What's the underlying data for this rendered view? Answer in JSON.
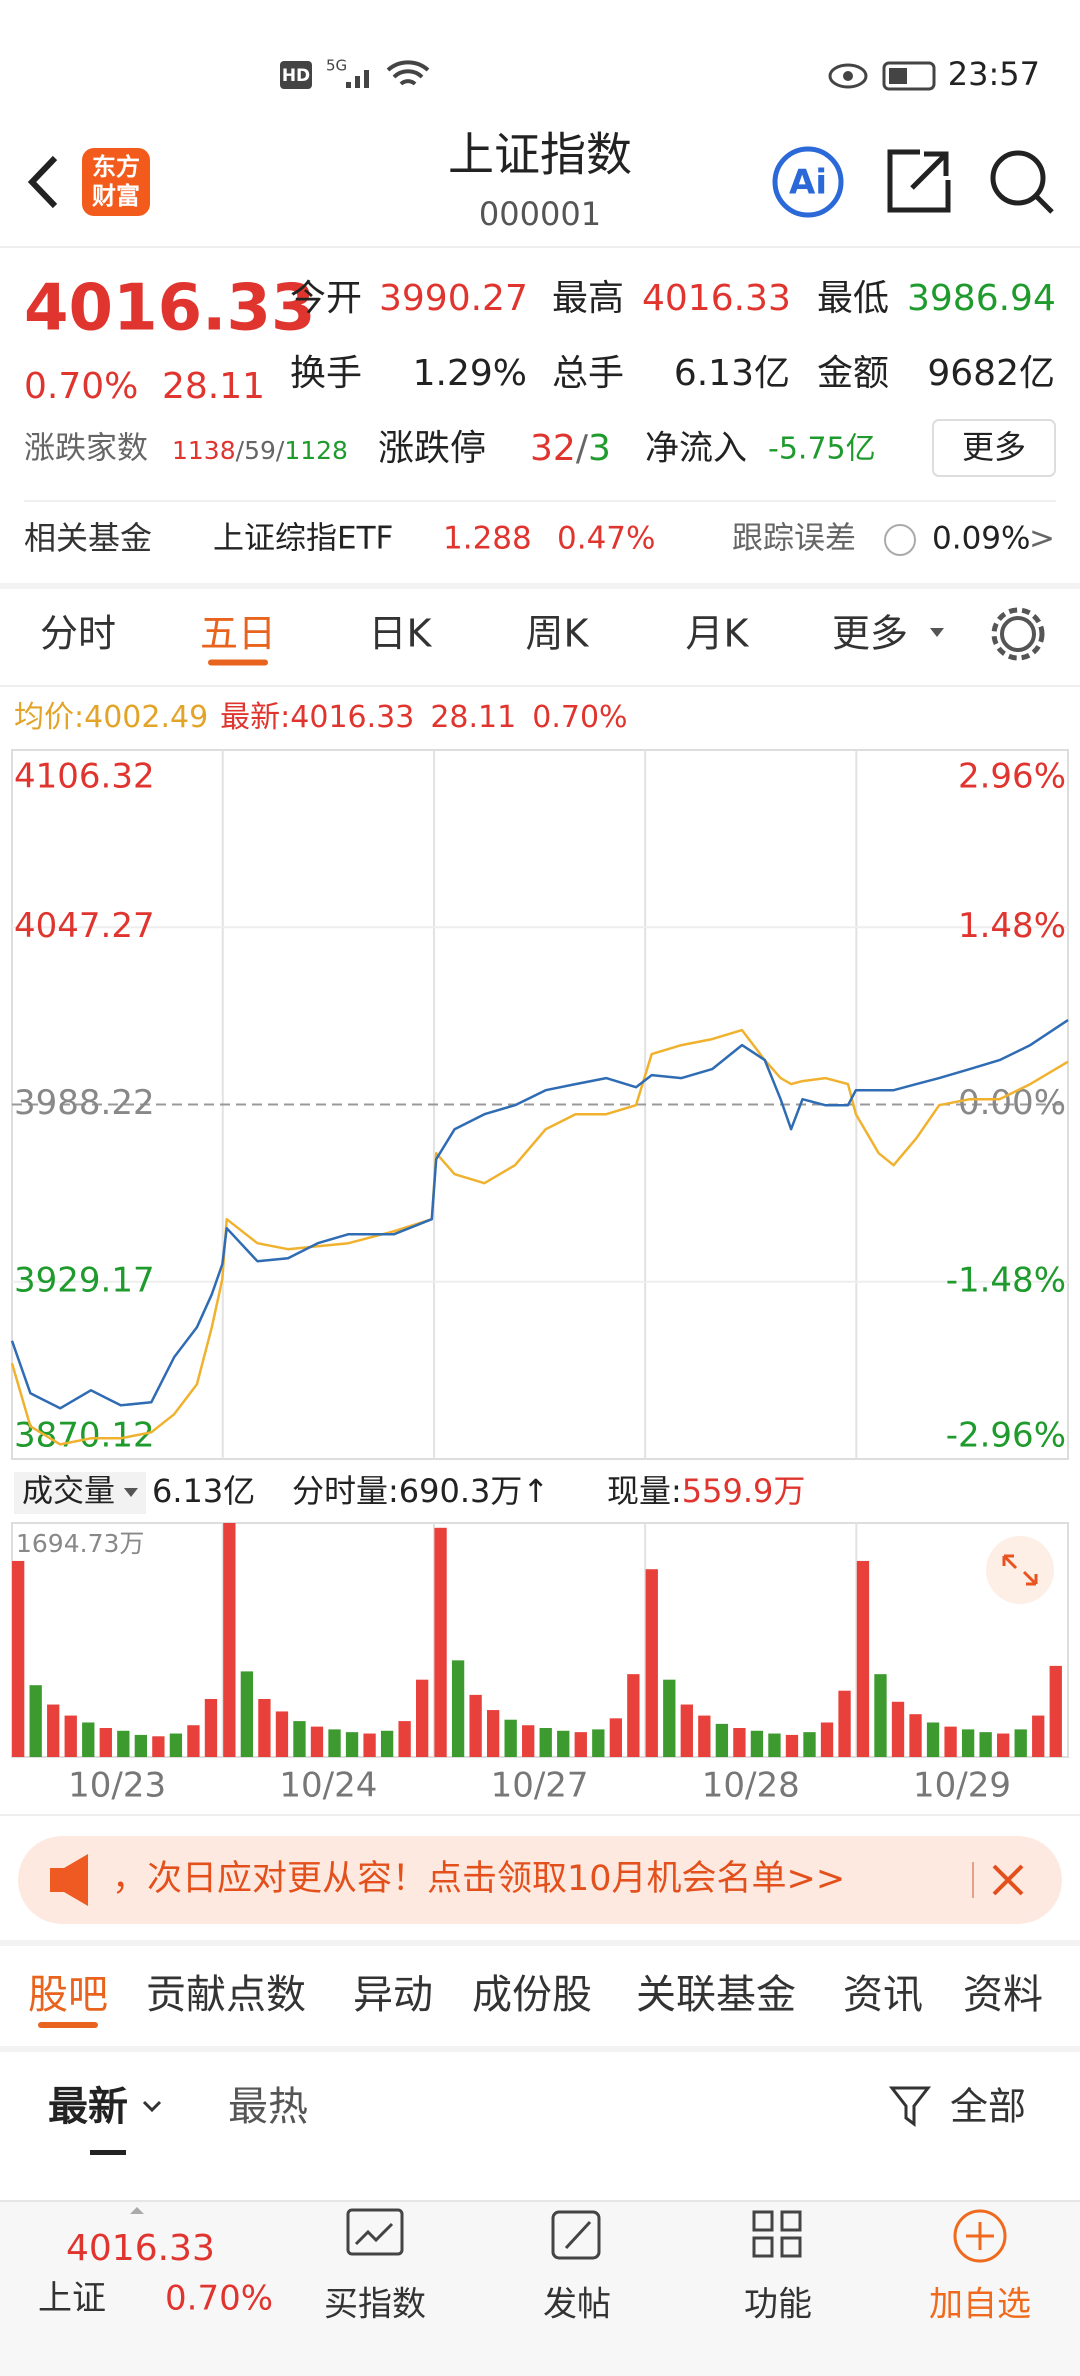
{
  "status_bar": {
    "badge": "HD",
    "network": "5G",
    "time": "23:57"
  },
  "header": {
    "logo": [
      "东方",
      "财富"
    ],
    "title": "上证指数",
    "code": "000001",
    "ai": "Ai"
  },
  "quote": {
    "price": "4016.33",
    "change_pct": "0.70%",
    "change": "28.11",
    "fields": [
      {
        "label": "今开",
        "value": "3990.27"
      },
      {
        "label": "最高",
        "value": "4016.33"
      },
      {
        "label": "最低",
        "value": "3986.94"
      },
      {
        "label": "换手",
        "value": "1.29%"
      },
      {
        "label": "总手",
        "value": "6.13亿"
      },
      {
        "label": "金额",
        "value": "9682亿"
      }
    ],
    "breadth": {
      "label": "涨跌家数",
      "up": "1138",
      "sep": "/",
      "flat": "59",
      "down": "1128"
    },
    "limit": {
      "label": "涨跌停",
      "up": "32",
      "sep": "/",
      "down": "3"
    },
    "net_inflow": {
      "label": "净流入",
      "value": "-5.75亿"
    },
    "more": "更多"
  },
  "fund": {
    "label": "相关基金",
    "name": "上证综指ETF",
    "price": "1.288",
    "pct": "0.47%",
    "tracking_label": "跟踪误差",
    "tracking_value": "0.09%",
    "arrow": ">"
  },
  "tabs": {
    "items": [
      "分时",
      "五日",
      "日K",
      "周K",
      "月K",
      "更多"
    ],
    "active": 1
  },
  "info_bar": {
    "avg_label": "均价:",
    "avg": "4002.49",
    "latest_label": "最新:",
    "latest": "4016.33",
    "change": "28.11",
    "pct": "0.70%"
  },
  "chart_data": [
    {
      "type": "line",
      "x": [
        0,
        21,
        55,
        90,
        124,
        159,
        185,
        211,
        228,
        240,
        245,
        280,
        315,
        349,
        384,
        436,
        479,
        484,
        505,
        539,
        574,
        609,
        643,
        678,
        712,
        730,
        764,
        799,
        833,
        859,
        877,
        889,
        902,
        928,
        954,
        963,
        989,
        1006,
        1032,
        1058,
        1093,
        1127,
        1162,
        1205
      ],
      "xlim": [
        0,
        1205
      ],
      "ylim": [
        3870.12,
        4106.32
      ],
      "yticks": [
        4106.32,
        4047.27,
        3988.22,
        3929.17,
        3870.12
      ],
      "y2lim": [
        -2.96,
        2.96
      ],
      "y2ticks": [
        {
          "value": 2.96,
          "label": "2.96%"
        },
        {
          "value": 1.48,
          "label": "1.48%"
        },
        {
          "value": 0,
          "label": "0.00%"
        },
        {
          "value": -1.48,
          "label": "-1.48%"
        },
        {
          "value": -2.96,
          "label": "-2.96%"
        }
      ],
      "grid": true,
      "series": [
        {
          "color": "#f0b22e",
          "values": [
            3902,
            3881,
            3875,
            3877,
            3877,
            3879,
            3885,
            3895,
            3914,
            3930,
            3950,
            3942,
            3940,
            3941,
            3942,
            3946,
            3950,
            3972,
            3965,
            3962,
            3968,
            3980,
            3985,
            3985,
            3988,
            4005,
            4008,
            4010,
            4013,
            4003,
            3997,
            3995,
            3996,
            3997,
            3995,
            3985,
            3972,
            3968,
            3977,
            3988,
            3990,
            3990,
            3995,
            4002.49
          ]
        },
        {
          "color": "#2f6cb3",
          "values": [
            3909.5,
            3892,
            3887,
            3893,
            3888,
            3889,
            3904,
            3914,
            3925,
            3935,
            3947,
            3936,
            3937,
            3942,
            3945,
            3945,
            3950,
            3970,
            3980,
            3985,
            3988,
            3993,
            3995,
            3997,
            3994,
            3998,
            3997,
            4000,
            4008,
            4003,
            3990,
            3980,
            3990,
            3988,
            3988,
            3993,
            3993,
            3993,
            3995,
            3997,
            4000,
            4003,
            4008,
            4016.33
          ]
        }
      ]
    },
    {
      "type": "bar",
      "x": [
        0,
        20,
        40,
        60,
        80,
        100,
        120,
        140,
        160,
        180,
        200,
        220,
        241,
        261,
        281,
        301,
        321,
        341,
        361,
        381,
        401,
        421,
        441,
        461,
        482,
        502,
        522,
        542,
        562,
        582,
        602,
        622,
        642,
        662,
        682,
        702,
        723,
        743,
        763,
        783,
        803,
        823,
        843,
        863,
        883,
        903,
        923,
        943,
        964,
        984,
        1004,
        1024,
        1044,
        1064,
        1084,
        1104,
        1124,
        1144,
        1164,
        1184
      ],
      "values": [
        1420,
        520,
        380,
        300,
        250,
        210,
        190,
        160,
        150,
        170,
        230,
        420,
        1694.73,
        620,
        420,
        330,
        260,
        220,
        200,
        180,
        170,
        190,
        260,
        560,
        1660,
        700,
        450,
        340,
        270,
        230,
        210,
        190,
        180,
        200,
        280,
        600,
        1360,
        560,
        380,
        300,
        240,
        210,
        190,
        170,
        160,
        180,
        250,
        480,
        1420,
        600,
        400,
        310,
        250,
        220,
        200,
        180,
        170,
        200,
        300,
        660
      ],
      "colors": [
        "#e8413c",
        "#3c9a2e",
        "#e8413c",
        "#e8413c",
        "#3c9a2e",
        "#e8413c",
        "#3c9a2e",
        "#3c9a2e",
        "#e8413c",
        "#3c9a2e",
        "#e8413c",
        "#e8413c",
        "#e8413c",
        "#3c9a2e",
        "#e8413c",
        "#e8413c",
        "#3c9a2e",
        "#e8413c",
        "#3c9a2e",
        "#3c9a2e",
        "#e8413c",
        "#3c9a2e",
        "#e8413c",
        "#e8413c",
        "#e8413c",
        "#3c9a2e",
        "#e8413c",
        "#e8413c",
        "#3c9a2e",
        "#e8413c",
        "#3c9a2e",
        "#3c9a2e",
        "#e8413c",
        "#3c9a2e",
        "#e8413c",
        "#e8413c",
        "#e8413c",
        "#3c9a2e",
        "#e8413c",
        "#e8413c",
        "#3c9a2e",
        "#e8413c",
        "#3c9a2e",
        "#3c9a2e",
        "#e8413c",
        "#3c9a2e",
        "#e8413c",
        "#e8413c",
        "#e8413c",
        "#3c9a2e",
        "#e8413c",
        "#e8413c",
        "#3c9a2e",
        "#e8413c",
        "#3c9a2e",
        "#3c9a2e",
        "#e8413c",
        "#3c9a2e",
        "#e8413c",
        "#e8413c"
      ],
      "xlim": [
        0,
        1205
      ],
      "ylim": [
        0,
        1694.73
      ],
      "yticks": [
        {
          "value": 1694.73,
          "label": "1694.73万"
        }
      ],
      "xticks": [
        {
          "value": 120,
          "label": "10/23"
        },
        {
          "value": 361,
          "label": "10/24"
        },
        {
          "value": 602,
          "label": "10/27"
        },
        {
          "value": 843,
          "label": "10/28"
        },
        {
          "value": 1084,
          "label": "10/29"
        }
      ]
    }
  ],
  "volume_bar": {
    "selector": "成交量",
    "total": "6.13亿",
    "tick_volume": "分时量:690.3万↑",
    "current_label": "现量:",
    "current": "559.9万"
  },
  "banner": {
    "text": "，次日应对更从容！点击领取10月机会名单>>"
  },
  "sub_tabs": {
    "items": [
      "股吧",
      "贡献点数",
      "异动",
      "成份股",
      "关联基金",
      "资讯",
      "资料"
    ],
    "active": 0
  },
  "feed_tabs": {
    "items": [
      "最新",
      "最热"
    ],
    "filter": "全部"
  },
  "bottom_nav": {
    "quote": {
      "price": "4016.33",
      "name": "上证",
      "pct": "0.70%"
    },
    "items": [
      "买指数",
      "发帖",
      "功能",
      "加自选"
    ]
  }
}
